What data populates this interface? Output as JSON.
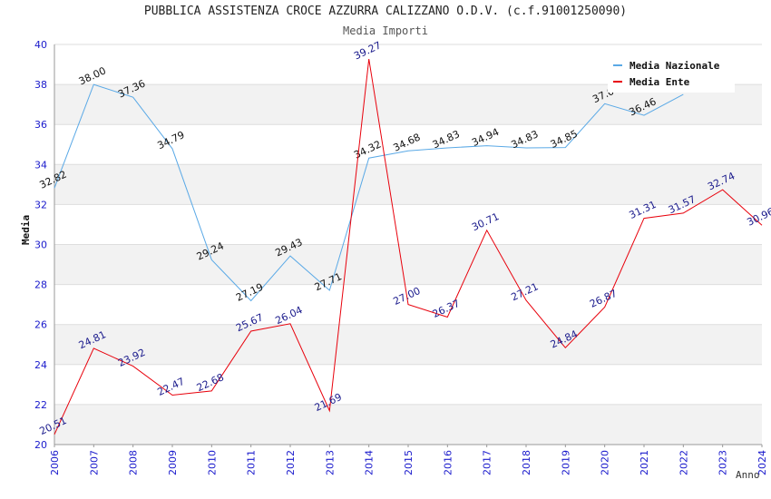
{
  "chart_data": {
    "type": "line",
    "title": "PUBBLICA ASSISTENZA CROCE AZZURRA CALIZZANO O.D.V. (c.f.91001250090)",
    "subtitle": "Media Importi",
    "xlabel": "Anno",
    "ylabel": "Media",
    "ylim": [
      20,
      40
    ],
    "yticks": [
      20,
      22,
      24,
      26,
      28,
      30,
      32,
      34,
      36,
      38,
      40
    ],
    "x": [
      2006,
      2007,
      2008,
      2009,
      2010,
      2011,
      2012,
      2013,
      2014,
      2015,
      2016,
      2017,
      2018,
      2019,
      2020,
      2021,
      2022,
      2023,
      2024
    ],
    "series": [
      {
        "name": "Media Nazionale",
        "color": "#5aa9e6",
        "label_color": "#111111",
        "values": [
          32.82,
          38.0,
          37.36,
          34.79,
          29.24,
          27.19,
          29.43,
          27.71,
          34.32,
          34.68,
          34.83,
          34.94,
          34.83,
          34.85,
          37.04,
          36.46,
          37.5,
          null,
          null
        ],
        "labels": [
          "32.82",
          "38.00",
          "37.36",
          "34.79",
          "29.24",
          "27.19",
          "29.43",
          "27.71",
          "34.32",
          "34.68",
          "34.83",
          "34.94",
          "34.83",
          "34.85",
          "37.0",
          "36.46",
          "",
          "",
          ""
        ]
      },
      {
        "name": "Media Ente",
        "color": "#e8000b",
        "label_color": "#1a1a8c",
        "values": [
          20.51,
          24.81,
          23.92,
          22.47,
          22.68,
          25.67,
          26.04,
          21.69,
          39.27,
          27.0,
          26.37,
          30.71,
          27.21,
          24.84,
          26.87,
          31.31,
          31.57,
          32.74,
          30.96
        ],
        "labels": [
          "20.51",
          "24.81",
          "23.92",
          "22.47",
          "22.68",
          "25.67",
          "26.04",
          "21.69",
          "39.27",
          "27.00",
          "26.37",
          "30.71",
          "27.21",
          "24.84",
          "26.87",
          "31.31",
          "31.57",
          "32.74",
          "30.96"
        ]
      }
    ],
    "legend_position": "top-right",
    "grid": true,
    "band_colors": [
      "#f2f2f2",
      "#ffffff"
    ],
    "axis_tick_color": "#1a1acc"
  }
}
